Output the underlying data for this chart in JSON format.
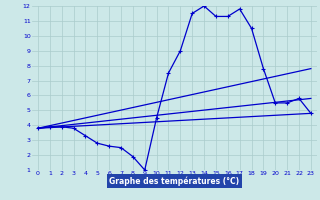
{
  "title": "Graphe des températures (°C)",
  "bg_color": "#cce8e8",
  "label_bg": "#2244aa",
  "label_fg": "#ffffff",
  "grid_color": "#aacccc",
  "line_color": "#0000cc",
  "xlim": [
    -0.5,
    23.5
  ],
  "ylim": [
    1,
    12
  ],
  "xticks": [
    0,
    1,
    2,
    3,
    4,
    5,
    6,
    7,
    8,
    9,
    10,
    11,
    12,
    13,
    14,
    15,
    16,
    17,
    18,
    19,
    20,
    21,
    22,
    23
  ],
  "yticks": [
    1,
    2,
    3,
    4,
    5,
    6,
    7,
    8,
    9,
    10,
    11,
    12
  ],
  "line1_x": [
    0,
    1,
    2,
    3,
    4,
    5,
    6,
    7,
    8,
    9,
    10,
    11,
    12,
    13,
    14,
    15,
    16,
    17,
    18,
    19,
    20,
    21,
    22,
    23
  ],
  "line1_y": [
    3.8,
    3.9,
    3.9,
    3.8,
    3.3,
    2.8,
    2.6,
    2.5,
    1.9,
    1.0,
    4.5,
    7.5,
    9.0,
    11.5,
    12.0,
    11.3,
    11.3,
    11.8,
    10.5,
    7.8,
    5.5,
    5.5,
    5.8,
    4.8
  ],
  "line2_x": [
    0,
    23
  ],
  "line2_y": [
    3.8,
    7.8
  ],
  "line3_x": [
    0,
    23
  ],
  "line3_y": [
    3.8,
    4.8
  ],
  "line4_x": [
    0,
    23
  ],
  "line4_y": [
    3.8,
    5.8
  ]
}
